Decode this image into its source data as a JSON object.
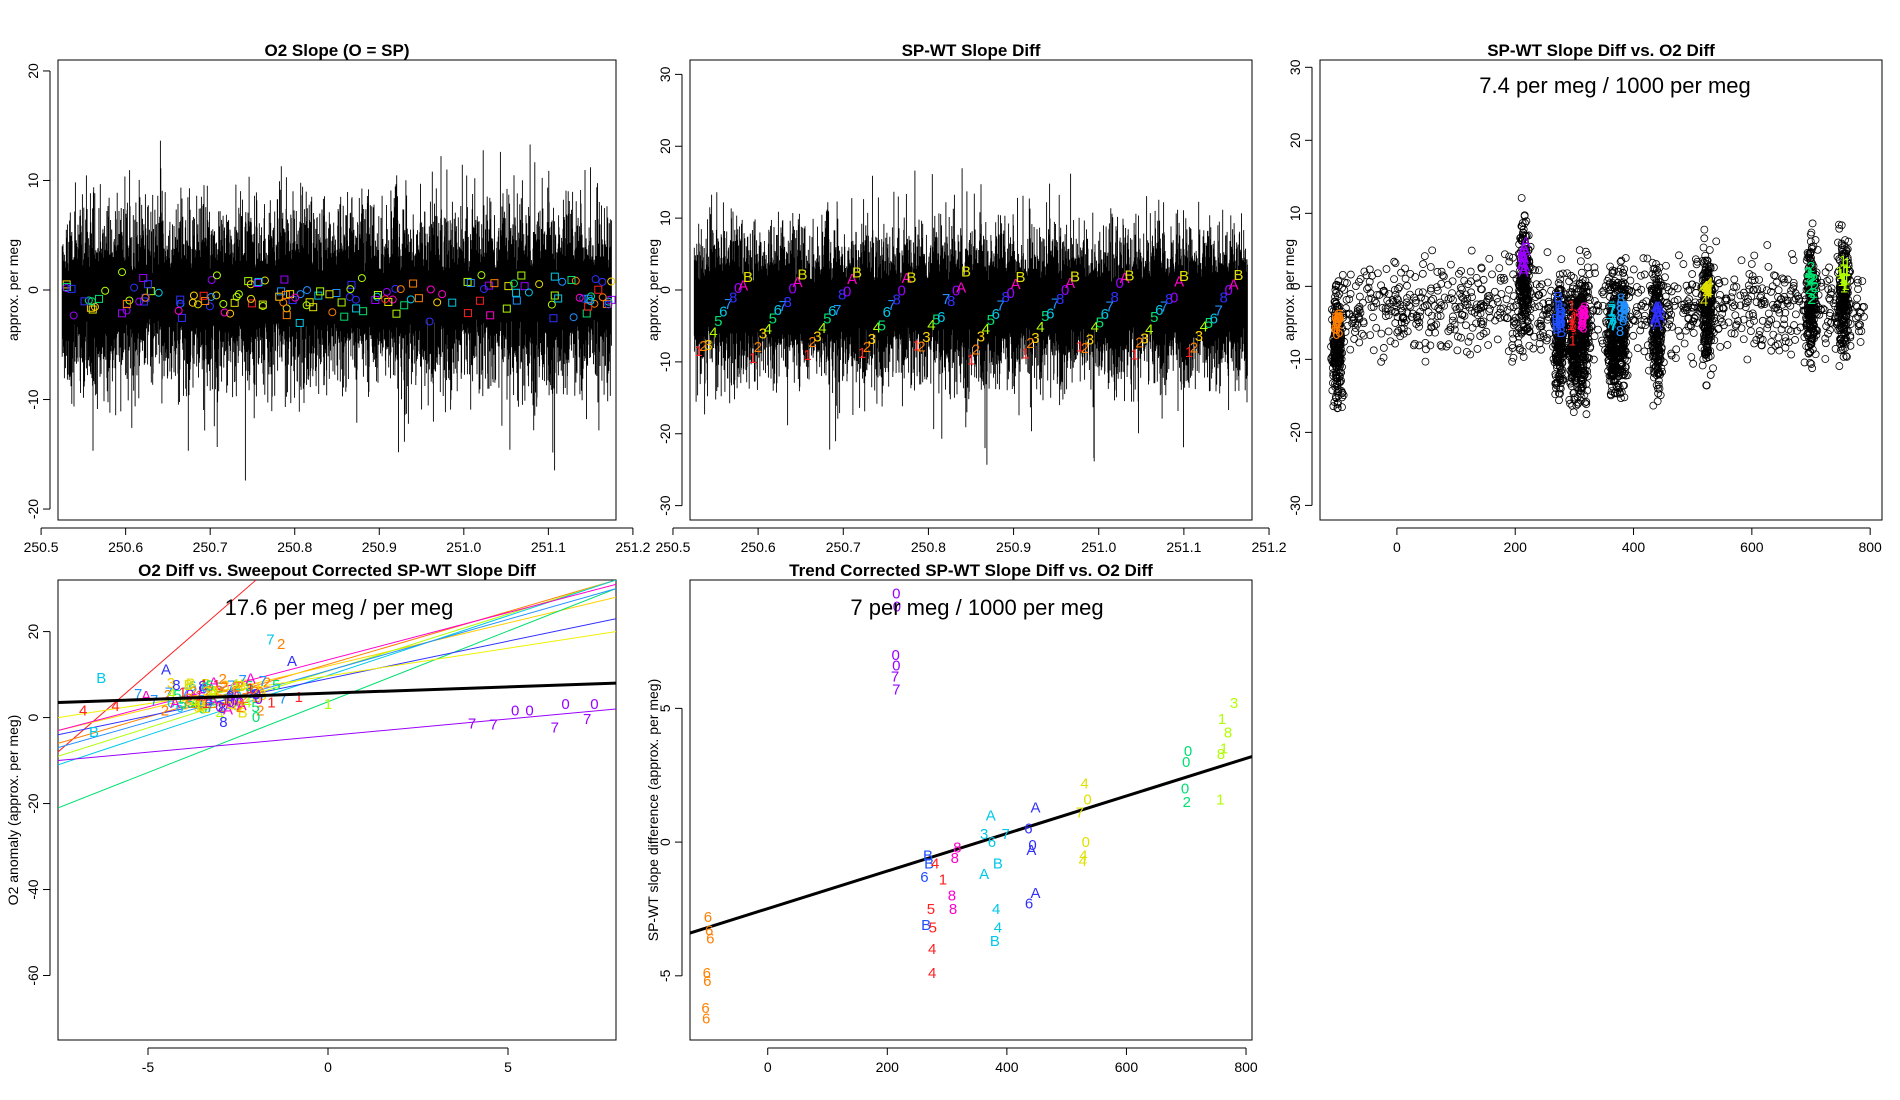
{
  "chart_data": [
    {
      "type": "line",
      "title": "O2 Slope (O = SP)",
      "xlabel": "",
      "ylabel": "approx. per meg",
      "xlim": [
        250.52,
        251.18
      ],
      "ylim": [
        -21,
        21
      ],
      "xticks": [
        250.5,
        250.6,
        250.7,
        250.8,
        250.9,
        251.0,
        251.1,
        251.2
      ],
      "xtick_labels": [
        "250.5",
        "250.6",
        "250.7",
        "250.8",
        "250.9",
        "251.0",
        "251.1",
        "251.2"
      ],
      "yticks": [
        -20,
        -10,
        0,
        10,
        20
      ],
      "ytick_labels": [
        "-20",
        "-10",
        "0",
        "10",
        "20"
      ],
      "series": [
        {
          "name": "raw slope trace",
          "style": "vertical-lines",
          "center": -0.5,
          "spread": 8
        },
        {
          "name": "cycle means (squares)",
          "marker": "square",
          "range": [
            -3,
            4
          ]
        },
        {
          "name": "cycle means (circles)",
          "marker": "circle",
          "range": [
            -4,
            2
          ]
        }
      ]
    },
    {
      "type": "line",
      "title": "SP-WT Slope Diff",
      "xlabel": "",
      "ylabel": "approx. per meg",
      "xlim": [
        250.52,
        251.18
      ],
      "ylim": [
        -32,
        32
      ],
      "xticks": [
        250.5,
        250.6,
        250.7,
        250.8,
        250.9,
        251.0,
        251.1,
        251.2
      ],
      "xtick_labels": [
        "250.5",
        "250.6",
        "250.7",
        "250.8",
        "250.9",
        "251.0",
        "251.1",
        "251.2"
      ],
      "yticks": [
        -30,
        -20,
        -10,
        0,
        10,
        20,
        30
      ],
      "ytick_labels": [
        "-30",
        "-20",
        "-10",
        "0",
        "10",
        "20",
        "30"
      ],
      "marker_labels": [
        "1",
        "2",
        "3",
        "4",
        "5",
        "6",
        "7",
        "8",
        "0",
        "A",
        "B"
      ],
      "series": [
        {
          "name": "raw slope diff trace",
          "style": "vertical-lines",
          "center": -2,
          "spread": 10
        }
      ]
    },
    {
      "type": "scatter",
      "title": "SP-WT Slope Diff vs. O2 Diff",
      "annotation": "7.4 per meg / 1000 per meg",
      "xlabel": "",
      "ylabel": "approx. per meg",
      "xlim": [
        -130,
        820
      ],
      "ylim": [
        -32,
        31
      ],
      "xticks": [
        0,
        200,
        400,
        600,
        800
      ],
      "xtick_labels": [
        "0",
        "200",
        "400",
        "600",
        "800"
      ],
      "yticks": [
        -30,
        -20,
        -10,
        0,
        10,
        20,
        30
      ],
      "ytick_labels": [
        "-30",
        "-20",
        "-10",
        "0",
        "10",
        "20",
        "30"
      ],
      "clusters": [
        {
          "x": -100,
          "center": -6,
          "label": "6",
          "color": "#ff7f00"
        },
        {
          "x": 215,
          "center": 3,
          "label": "A",
          "color": "#9a00ff"
        },
        {
          "x": 275,
          "center": -5,
          "label": "B",
          "color": "#1f4fff"
        },
        {
          "x": 300,
          "center": -6,
          "label": "1",
          "color": "#ff2020"
        },
        {
          "x": 315,
          "center": -5,
          "label": "8",
          "color": "#ff00cc"
        },
        {
          "x": 365,
          "center": -5,
          "label": "7",
          "color": "#00c8e8"
        },
        {
          "x": 380,
          "center": -4,
          "label": "8",
          "color": "#2090ff"
        },
        {
          "x": 440,
          "center": -4,
          "label": "A",
          "color": "#3030ff"
        },
        {
          "x": 525,
          "center": -1,
          "label": "4",
          "color": "#e0e000"
        },
        {
          "x": 700,
          "center": 0,
          "label": "2",
          "color": "#00e070"
        },
        {
          "x": 755,
          "center": 1,
          "label": "1",
          "color": "#b0ff00"
        }
      ]
    },
    {
      "type": "line",
      "title": "O2 Diff vs. Sweepout Corrected SP-WT Slope Diff",
      "annotation": "17.6 per meg / per meg",
      "xlabel": "",
      "ylabel": "O2 anomaly (approx. per meg)",
      "xlim": [
        -7.5,
        8
      ],
      "ylim": [
        -75,
        32
      ],
      "xticks": [
        -5,
        0,
        5
      ],
      "xtick_labels": [
        "-5",
        "0",
        "5"
      ],
      "yticks": [
        -60,
        -40,
        -20,
        0,
        20
      ],
      "ytick_labels": [
        "-60",
        "-40",
        "-20",
        "0",
        "20"
      ],
      "fit_line": {
        "x": [
          -7.5,
          8
        ],
        "y": [
          3.5,
          8
        ]
      },
      "cycle_lines": [
        {
          "color": "#ff2020",
          "x": [
            -7.5,
            -2
          ],
          "y": [
            -8,
            32
          ]
        },
        {
          "color": "#ff7f00",
          "x": [
            -7.5,
            8
          ],
          "y": [
            -6,
            32
          ]
        },
        {
          "color": "#ffd000",
          "x": [
            -7.5,
            8
          ],
          "y": [
            -3,
            28
          ]
        },
        {
          "color": "#b0ff00",
          "x": [
            -7.5,
            8
          ],
          "y": [
            -9,
            32
          ]
        },
        {
          "color": "#00e070",
          "x": [
            -7.5,
            8
          ],
          "y": [
            -21,
            30
          ]
        },
        {
          "color": "#00c8e8",
          "x": [
            -7.5,
            8
          ],
          "y": [
            -11,
            32
          ]
        },
        {
          "color": "#2090ff",
          "x": [
            -7.5,
            8
          ],
          "y": [
            -7,
            30
          ]
        },
        {
          "color": "#3030ff",
          "x": [
            -7.5,
            8
          ],
          "y": [
            -4,
            23
          ]
        },
        {
          "color": "#9a00ff",
          "x": [
            -7.5,
            8
          ],
          "y": [
            -10,
            2
          ]
        },
        {
          "color": "#ff00cc",
          "x": [
            -7.5,
            8
          ],
          "y": [
            -3,
            31
          ]
        },
        {
          "color": "#f0f000",
          "x": [
            -7.5,
            8
          ],
          "y": [
            0,
            20
          ]
        }
      ],
      "labeled_points": [
        {
          "label": "7",
          "x": 4.0,
          "y": -2.5,
          "color": "#9a00ff"
        },
        {
          "label": "7",
          "x": 4.6,
          "y": -2.8,
          "color": "#9a00ff"
        },
        {
          "label": "0",
          "x": 5.2,
          "y": 0.5,
          "color": "#9a00ff"
        },
        {
          "label": "0",
          "x": 5.6,
          "y": 0.5,
          "color": "#9a00ff"
        },
        {
          "label": "7",
          "x": 6.3,
          "y": -3.5,
          "color": "#9a00ff"
        },
        {
          "label": "0",
          "x": 6.6,
          "y": 2.0,
          "color": "#9a00ff"
        },
        {
          "label": "0",
          "x": 7.4,
          "y": 2.0,
          "color": "#9a00ff"
        },
        {
          "label": "7",
          "x": 7.2,
          "y": -1.5,
          "color": "#9a00ff"
        },
        {
          "label": "4",
          "x": -6.8,
          "y": 0.5,
          "color": "#ff2020"
        },
        {
          "label": "4",
          "x": -5.9,
          "y": 1.5,
          "color": "#ff2020"
        },
        {
          "label": "B",
          "x": -6.3,
          "y": 8.0,
          "color": "#00c8e8"
        },
        {
          "label": "B",
          "x": -6.5,
          "y": -4.5,
          "color": "#00c8e8"
        },
        {
          "label": "A",
          "x": -4.5,
          "y": 10.0,
          "color": "#3030ff"
        },
        {
          "label": "A",
          "x": -1.0,
          "y": 12.0,
          "color": "#3030ff"
        },
        {
          "label": "7",
          "x": -1.6,
          "y": 17.0,
          "color": "#00c8e8"
        },
        {
          "label": "2",
          "x": -1.3,
          "y": 16.0,
          "color": "#ff7f00"
        },
        {
          "label": "1",
          "x": 0.0,
          "y": 2.0,
          "color": "#b0ff00"
        },
        {
          "label": "0",
          "x": -2.0,
          "y": -1.0,
          "color": "#00e070"
        }
      ]
    },
    {
      "type": "scatter",
      "title": "Trend Corrected SP-WT Slope Diff vs. O2 Diff",
      "annotation": "7 per meg / 1000 per meg",
      "xlabel": "",
      "ylabel": "SP-WT slope difference (approx. per meg)",
      "xlim": [
        -130,
        810
      ],
      "ylim": [
        -7.4,
        9.8
      ],
      "xticks": [
        0,
        200,
        400,
        600,
        800
      ],
      "xtick_labels": [
        "0",
        "200",
        "400",
        "600",
        "800"
      ],
      "yticks": [
        -5,
        0,
        5
      ],
      "ytick_labels": [
        "-5",
        "0",
        "5"
      ],
      "fit_line": {
        "x": [
          -130,
          810
        ],
        "y": [
          -3.4,
          3.2
        ]
      },
      "labeled_points": [
        {
          "label": "6",
          "x": -100,
          "y": -2.8,
          "color": "#ff7f00"
        },
        {
          "label": "6",
          "x": -98,
          "y": -3.3,
          "color": "#ff7f00"
        },
        {
          "label": "6",
          "x": -96,
          "y": -3.6,
          "color": "#ff7f00"
        },
        {
          "label": "6",
          "x": -102,
          "y": -4.9,
          "color": "#ff7f00"
        },
        {
          "label": "6",
          "x": -101,
          "y": -5.2,
          "color": "#ff7f00"
        },
        {
          "label": "6",
          "x": -104,
          "y": -6.2,
          "color": "#ff7f00"
        },
        {
          "label": "6",
          "x": -103,
          "y": -6.6,
          "color": "#ff7f00"
        },
        {
          "label": "0",
          "x": 215,
          "y": 9.3,
          "color": "#9a00ff"
        },
        {
          "label": "0",
          "x": 216,
          "y": 8.8,
          "color": "#9a00ff"
        },
        {
          "label": "0",
          "x": 214,
          "y": 7.0,
          "color": "#9a00ff"
        },
        {
          "label": "0",
          "x": 215,
          "y": 6.6,
          "color": "#9a00ff"
        },
        {
          "label": "7",
          "x": 213,
          "y": 6.2,
          "color": "#9a00ff"
        },
        {
          "label": "7",
          "x": 215,
          "y": 5.7,
          "color": "#9a00ff"
        },
        {
          "label": "B",
          "x": 268,
          "y": -0.5,
          "color": "#1f4fff"
        },
        {
          "label": "B",
          "x": 270,
          "y": -0.8,
          "color": "#1f4fff"
        },
        {
          "label": "6",
          "x": 262,
          "y": -1.3,
          "color": "#1f4fff"
        },
        {
          "label": "B",
          "x": 265,
          "y": -3.1,
          "color": "#1f4fff"
        },
        {
          "label": "4",
          "x": 280,
          "y": -0.8,
          "color": "#ff2020"
        },
        {
          "label": "1",
          "x": 293,
          "y": -1.4,
          "color": "#ff2020"
        },
        {
          "label": "5",
          "x": 273,
          "y": -2.5,
          "color": "#ff2020"
        },
        {
          "label": "5",
          "x": 276,
          "y": -3.2,
          "color": "#ff2020"
        },
        {
          "label": "4",
          "x": 275,
          "y": -4.0,
          "color": "#ff2020"
        },
        {
          "label": "4",
          "x": 275,
          "y": -4.9,
          "color": "#ff2020"
        },
        {
          "label": "8",
          "x": 317,
          "y": -0.2,
          "color": "#ff00cc"
        },
        {
          "label": "8",
          "x": 313,
          "y": -0.6,
          "color": "#ff00cc"
        },
        {
          "label": "8",
          "x": 308,
          "y": -2.0,
          "color": "#ff00cc"
        },
        {
          "label": "8",
          "x": 310,
          "y": -2.5,
          "color": "#ff00cc"
        },
        {
          "label": "A",
          "x": 373,
          "y": 1.0,
          "color": "#00c8e8"
        },
        {
          "label": "3",
          "x": 362,
          "y": 0.3,
          "color": "#00c8e8"
        },
        {
          "label": "6",
          "x": 375,
          "y": 0.0,
          "color": "#00c8e8"
        },
        {
          "label": "7",
          "x": 398,
          "y": 0.3,
          "color": "#00c8e8"
        },
        {
          "label": "A",
          "x": 362,
          "y": -1.2,
          "color": "#00c8e8"
        },
        {
          "label": "B",
          "x": 385,
          "y": -0.8,
          "color": "#00c8e8"
        },
        {
          "label": "4",
          "x": 382,
          "y": -2.5,
          "color": "#00c8e8"
        },
        {
          "label": "4",
          "x": 385,
          "y": -3.2,
          "color": "#00c8e8"
        },
        {
          "label": "B",
          "x": 380,
          "y": -3.7,
          "color": "#00c8e8"
        },
        {
          "label": "A",
          "x": 448,
          "y": 1.3,
          "color": "#3030ff"
        },
        {
          "label": "6",
          "x": 436,
          "y": 0.5,
          "color": "#3030ff"
        },
        {
          "label": "0",
          "x": 443,
          "y": -0.1,
          "color": "#3030ff"
        },
        {
          "label": "A",
          "x": 441,
          "y": -0.3,
          "color": "#3030ff"
        },
        {
          "label": "A",
          "x": 448,
          "y": -1.9,
          "color": "#3030ff"
        },
        {
          "label": "6",
          "x": 437,
          "y": -2.3,
          "color": "#3030ff"
        },
        {
          "label": "4",
          "x": 530,
          "y": 2.2,
          "color": "#e0e000"
        },
        {
          "label": "7",
          "x": 522,
          "y": 1.1,
          "color": "#e0e000"
        },
        {
          "label": "0",
          "x": 535,
          "y": 1.6,
          "color": "#e0e000"
        },
        {
          "label": "0",
          "x": 532,
          "y": 0.0,
          "color": "#e0e000"
        },
        {
          "label": "4",
          "x": 528,
          "y": -0.5,
          "color": "#e0e000"
        },
        {
          "label": "4",
          "x": 527,
          "y": -0.7,
          "color": "#e0e000"
        },
        {
          "label": "0",
          "x": 703,
          "y": 3.4,
          "color": "#00e070"
        },
        {
          "label": "0",
          "x": 700,
          "y": 3.0,
          "color": "#00e070"
        },
        {
          "label": "0",
          "x": 698,
          "y": 2.0,
          "color": "#00e070"
        },
        {
          "label": "2",
          "x": 701,
          "y": 1.5,
          "color": "#00e070"
        },
        {
          "label": "1",
          "x": 760,
          "y": 4.6,
          "color": "#b0ff00"
        },
        {
          "label": "3",
          "x": 780,
          "y": 5.2,
          "color": "#b0ff00"
        },
        {
          "label": "8",
          "x": 770,
          "y": 4.1,
          "color": "#b0ff00"
        },
        {
          "label": "1",
          "x": 763,
          "y": 3.5,
          "color": "#b0ff00"
        },
        {
          "label": "8",
          "x": 758,
          "y": 3.3,
          "color": "#b0ff00"
        },
        {
          "label": "1",
          "x": 757,
          "y": 1.6,
          "color": "#b0ff00"
        }
      ]
    }
  ]
}
